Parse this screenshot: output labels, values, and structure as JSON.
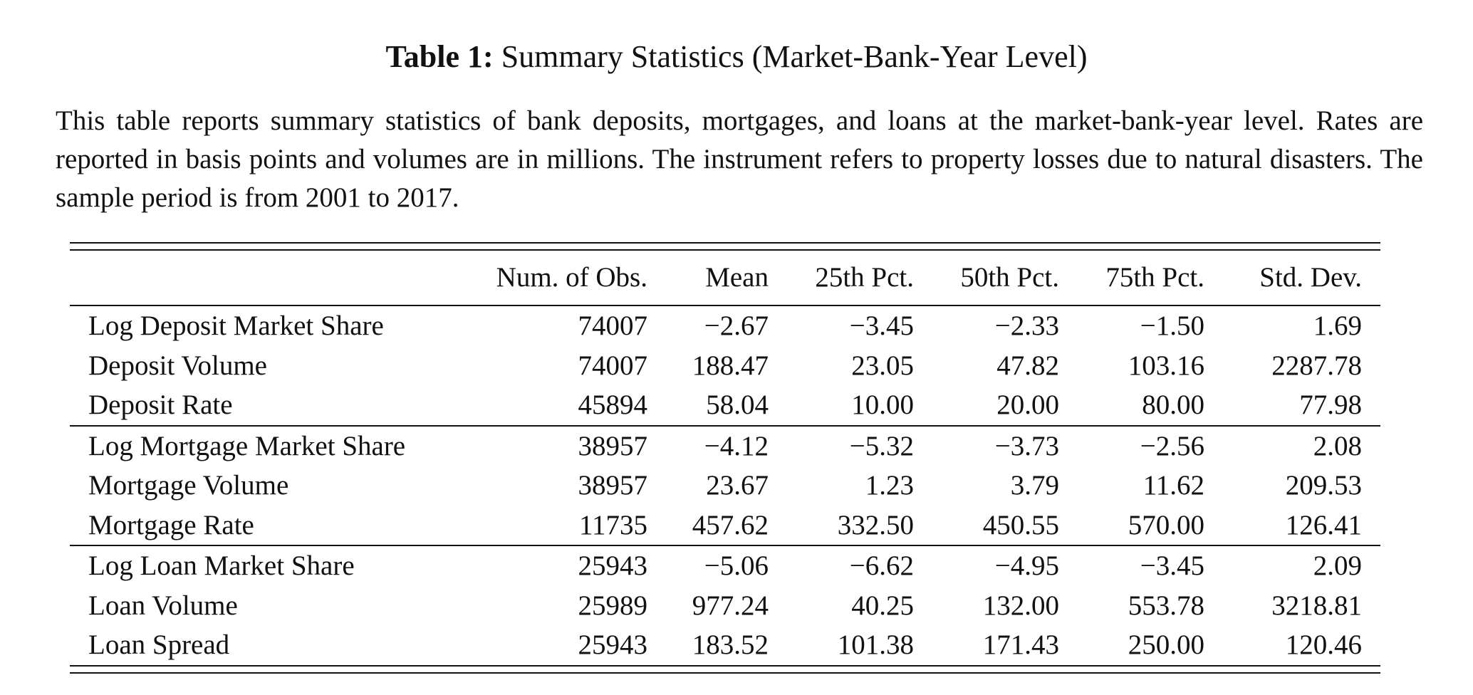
{
  "caption": {
    "label": "Table 1:",
    "title": "Summary Statistics (Market-Bank-Year Level)",
    "description": "This table reports summary statistics of bank deposits, mortgages, and loans at the market-bank-year level. Rates are reported in basis points and volumes are in millions. The instrument refers to property losses due to natural disasters. The sample period is from 2001 to 2017."
  },
  "table": {
    "columns": [
      "",
      "Num. of Obs.",
      "Mean",
      "25th Pct.",
      "50th Pct.",
      "75th Pct.",
      "Std. Dev."
    ],
    "groups": [
      {
        "rows": [
          {
            "label": "Log Deposit Market Share",
            "values": [
              "74007",
              "−2.67",
              "−3.45",
              "−2.33",
              "−1.50",
              "1.69"
            ]
          },
          {
            "label": "Deposit Volume",
            "values": [
              "74007",
              "188.47",
              "23.05",
              "47.82",
              "103.16",
              "2287.78"
            ]
          },
          {
            "label": "Deposit Rate",
            "values": [
              "45894",
              "58.04",
              "10.00",
              "20.00",
              "80.00",
              "77.98"
            ]
          }
        ]
      },
      {
        "rows": [
          {
            "label": "Log Mortgage Market Share",
            "values": [
              "38957",
              "−4.12",
              "−5.32",
              "−3.73",
              "−2.56",
              "2.08"
            ]
          },
          {
            "label": "Mortgage Volume",
            "values": [
              "38957",
              "23.67",
              "1.23",
              "3.79",
              "11.62",
              "209.53"
            ]
          },
          {
            "label": "Mortgage Rate",
            "values": [
              "11735",
              "457.62",
              "332.50",
              "450.55",
              "570.00",
              "126.41"
            ]
          }
        ]
      },
      {
        "rows": [
          {
            "label": "Log Loan Market Share",
            "values": [
              "25943",
              "−5.06",
              "−6.62",
              "−4.95",
              "−3.45",
              "2.09"
            ]
          },
          {
            "label": "Loan Volume",
            "values": [
              "25989",
              "977.24",
              "40.25",
              "132.00",
              "553.78",
              "3218.81"
            ]
          },
          {
            "label": "Loan Spread",
            "values": [
              "25943",
              "183.52",
              "101.38",
              "171.43",
              "250.00",
              "120.46"
            ]
          }
        ]
      }
    ]
  }
}
